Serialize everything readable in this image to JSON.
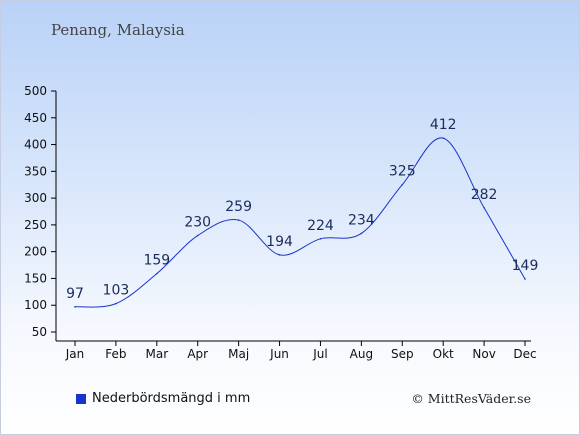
{
  "header": {
    "location": "Penang, Malaysia"
  },
  "chart_data": {
    "type": "line",
    "categories": [
      "Jan",
      "Feb",
      "Mar",
      "Apr",
      "Maj",
      "Jun",
      "Jul",
      "Aug",
      "Sep",
      "Okt",
      "Nov",
      "Dec"
    ],
    "series": [
      {
        "name": "Nederbördsmängd i mm",
        "values": [
          97,
          103,
          159,
          230,
          259,
          194,
          224,
          234,
          325,
          412,
          282,
          149
        ]
      }
    ],
    "yticks": [
      50,
      100,
      150,
      200,
      250,
      300,
      350,
      400,
      450,
      500
    ],
    "ylim": [
      50,
      500
    ],
    "grid": false,
    "legend_position": "bottom-left",
    "line_color": "#1a34c8"
  },
  "legend": {
    "label": "Nederbördsmängd i mm"
  },
  "credit": {
    "text": "© MittResVäder.se"
  }
}
